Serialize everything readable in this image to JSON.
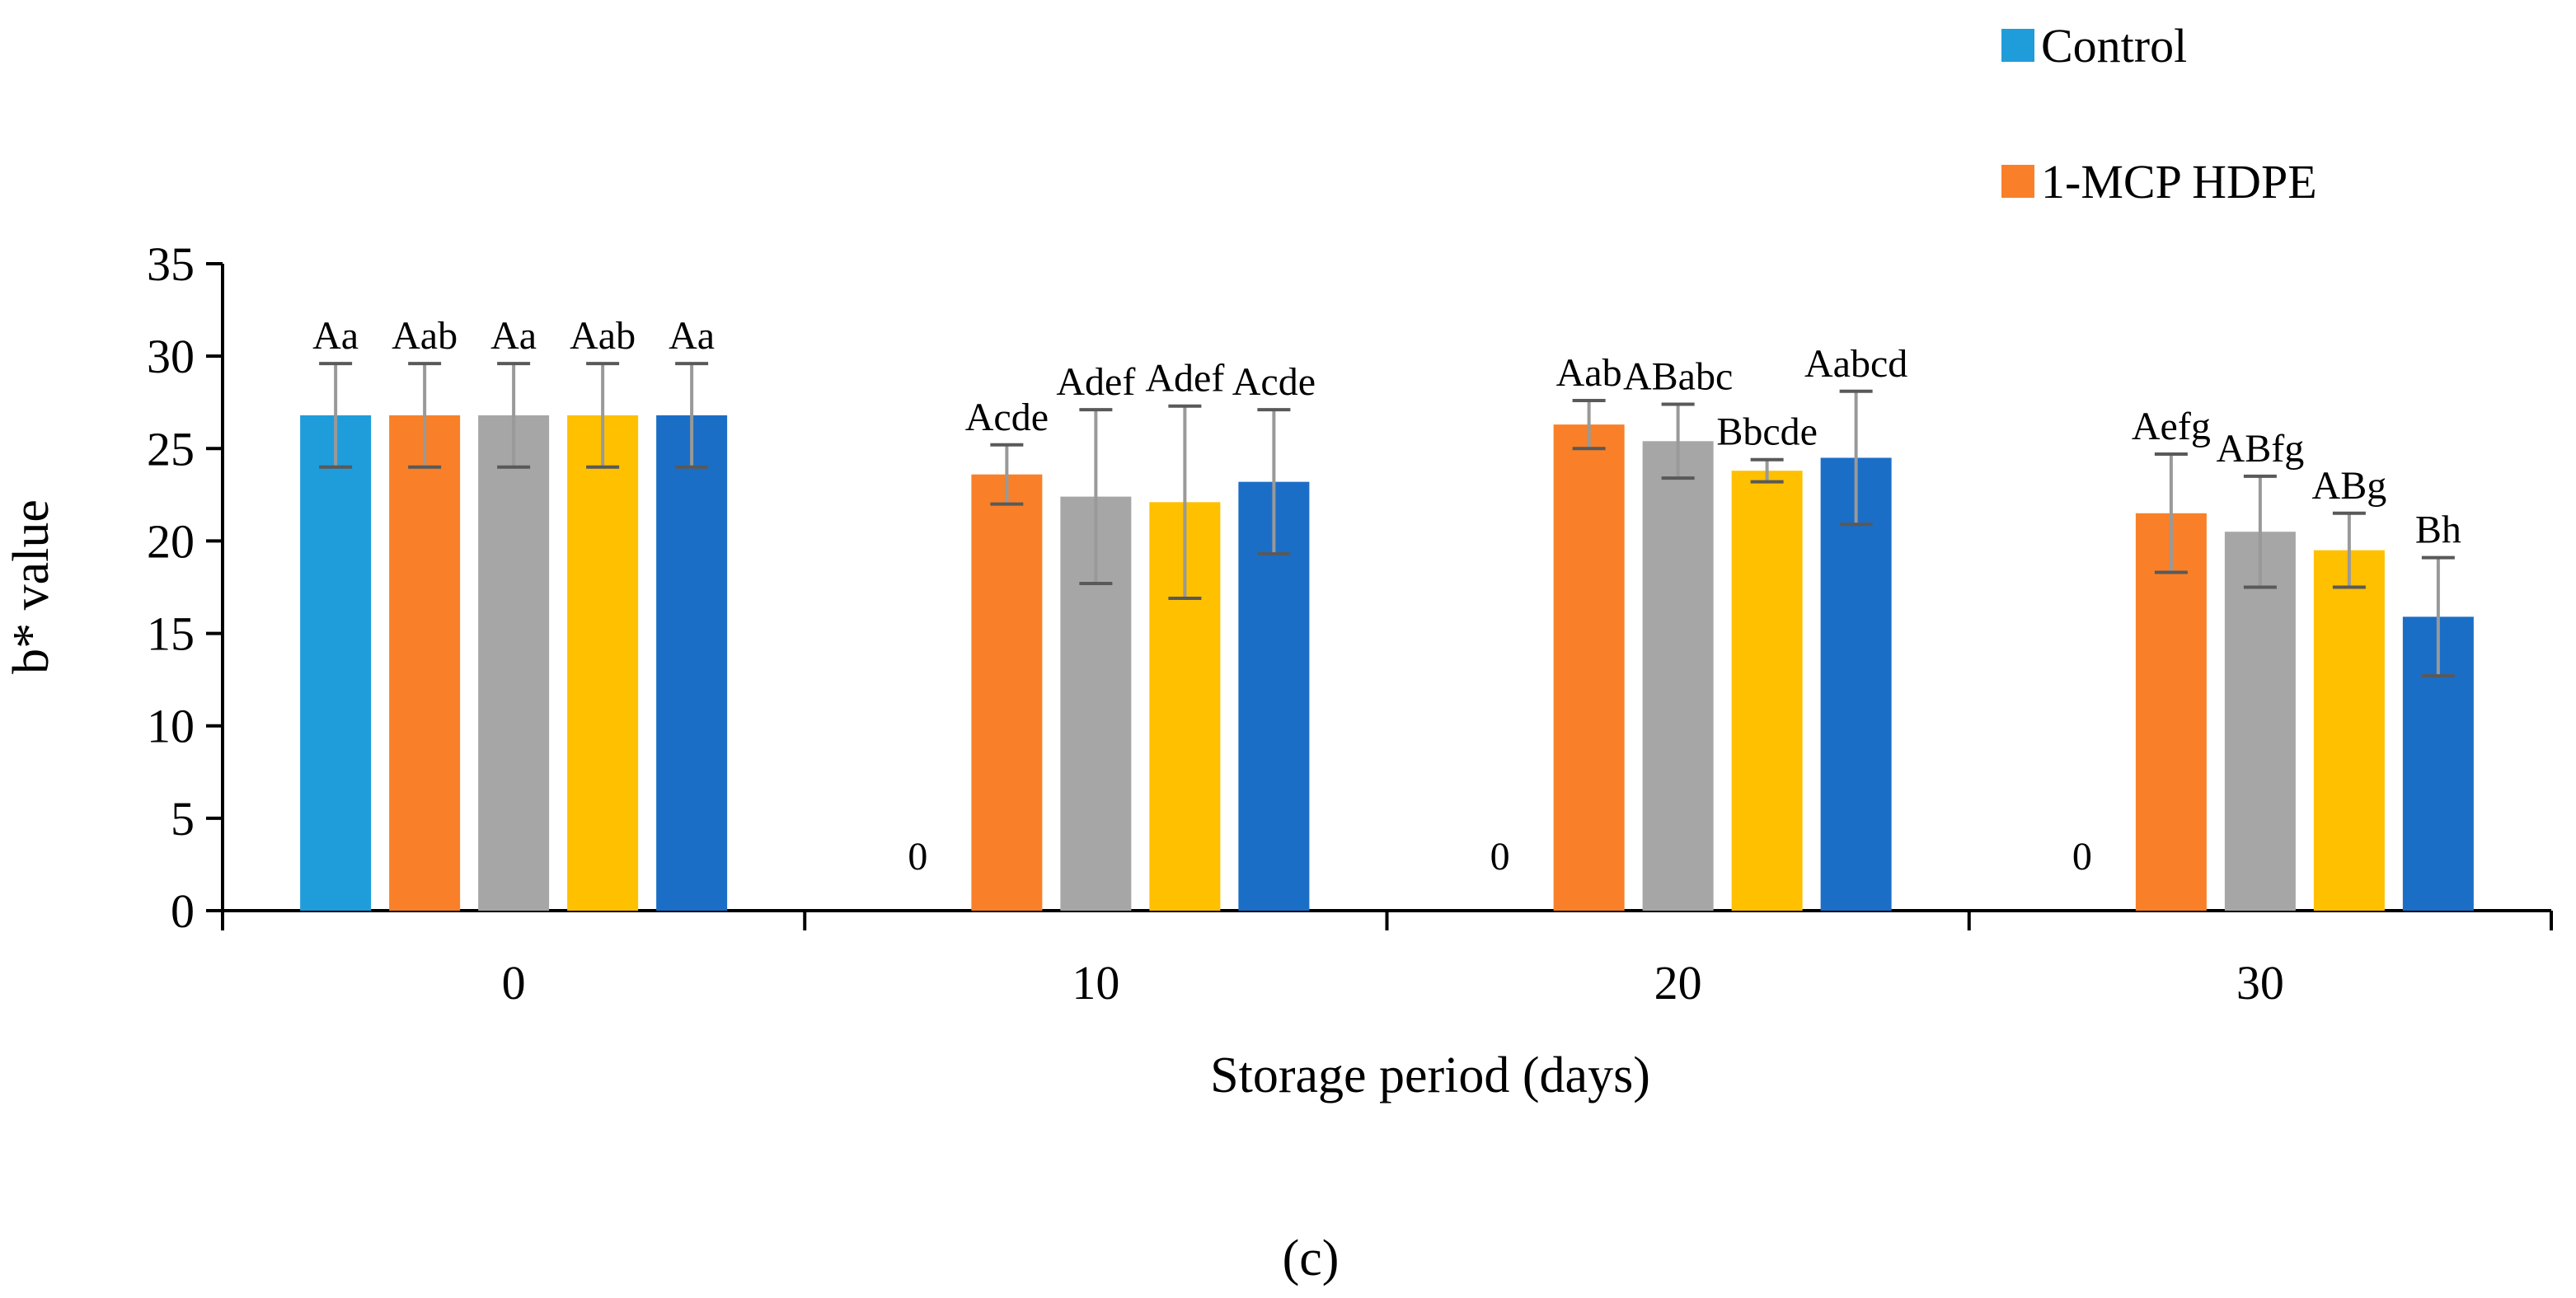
{
  "chart_data": {
    "type": "bar",
    "xlabel": "Storage period (days)",
    "ylabel": "b* value",
    "ylim": [
      0,
      35
    ],
    "yticks": [
      0,
      5,
      10,
      15,
      20,
      25,
      30,
      35
    ],
    "categories": [
      "0",
      "10",
      "20",
      "30"
    ],
    "legend_placement": "top-right, outside plot",
    "grid": false,
    "panel_label": "(c)",
    "zero_value_label": "0",
    "series": [
      {
        "name": "Control",
        "color": "#1f9ddb",
        "values": [
          26.8,
          0,
          0,
          0
        ],
        "errors": [
          2.8,
          null,
          null,
          null
        ],
        "labels": [
          "Aa",
          "0",
          "0",
          "0"
        ]
      },
      {
        "name": "1-MCP HDPE",
        "color": "#f98028",
        "values": [
          26.8,
          23.6,
          26.3,
          21.5
        ],
        "errors": [
          2.8,
          1.6,
          1.3,
          3.2
        ],
        "labels": [
          "Aab",
          "Acde",
          "Aab",
          "Aefg"
        ]
      },
      {
        "name": "",
        "color": "#a6a6a6",
        "values": [
          26.8,
          22.4,
          25.4,
          20.5
        ],
        "errors": [
          2.8,
          4.7,
          2.0,
          3.0
        ],
        "labels": [
          "Aa",
          "Adef",
          "ABabc",
          "ABfg"
        ]
      },
      {
        "name": "",
        "color": "#ffc000",
        "values": [
          26.8,
          22.1,
          23.8,
          19.5
        ],
        "errors": [
          2.8,
          5.2,
          0.6,
          2.0
        ],
        "labels": [
          "Aab",
          "Adef",
          "Bbcde",
          "ABg"
        ]
      },
      {
        "name": "",
        "color": "#1b6ec6",
        "values": [
          26.8,
          23.2,
          24.5,
          15.9
        ],
        "errors": [
          2.8,
          3.9,
          3.6,
          3.2
        ],
        "labels": [
          "Aa",
          "Acde",
          "Aabcd",
          "Bh"
        ]
      }
    ]
  }
}
